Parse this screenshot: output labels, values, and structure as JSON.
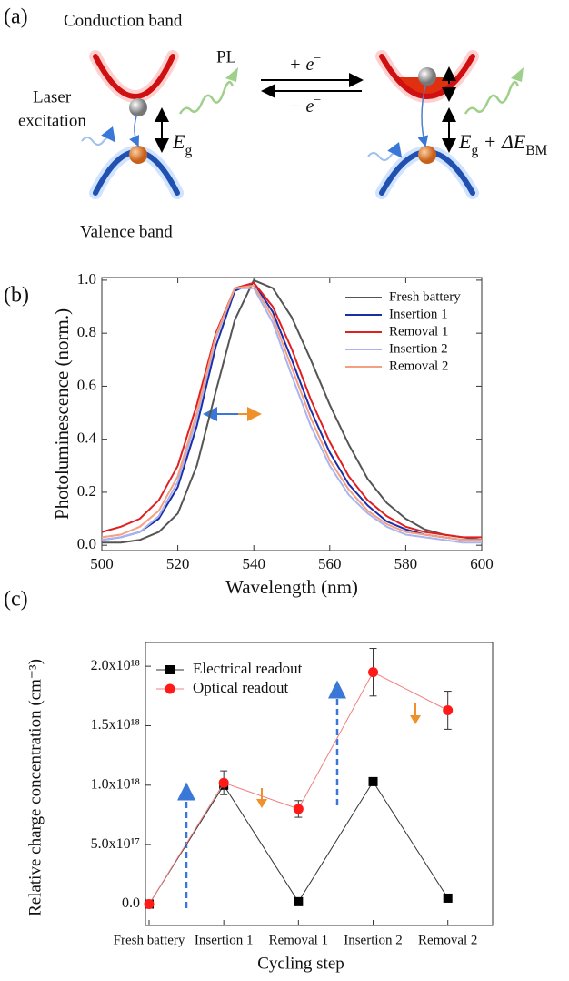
{
  "panel_labels": [
    "(a)",
    "(b)",
    "(c)"
  ],
  "diagram": {
    "conduction_band": "Conduction band",
    "valence_band": "Valence band",
    "pl": "PL",
    "laser_excitation": [
      "Laser",
      "excitation"
    ],
    "gap_label": [
      "E",
      "g"
    ],
    "shifted_gap_label": [
      "E",
      "g",
      " + ΔE",
      "BM"
    ],
    "electron_in": [
      "+ e",
      "−"
    ],
    "electron_out": [
      "− e",
      "−"
    ]
  },
  "chart_data": [
    {
      "type": "line",
      "xlabel": "Wavelength (nm)",
      "ylabel": "Photoluminescence (norm.)",
      "x": [
        500,
        505,
        510,
        515,
        520,
        525,
        530,
        535,
        540,
        545,
        550,
        555,
        560,
        565,
        570,
        575,
        580,
        585,
        590,
        595,
        600
      ],
      "series": [
        {
          "name": "Fresh battery",
          "color": "#555555",
          "values": [
            0.01,
            0.01,
            0.02,
            0.05,
            0.12,
            0.3,
            0.58,
            0.85,
            1.0,
            0.97,
            0.86,
            0.7,
            0.53,
            0.38,
            0.25,
            0.16,
            0.1,
            0.06,
            0.04,
            0.03,
            0.02
          ]
        },
        {
          "name": "Insertion 1",
          "color": "#1a2ea8",
          "values": [
            0.02,
            0.03,
            0.05,
            0.1,
            0.22,
            0.45,
            0.75,
            0.96,
            0.99,
            0.88,
            0.7,
            0.51,
            0.35,
            0.23,
            0.15,
            0.09,
            0.06,
            0.04,
            0.03,
            0.02,
            0.02
          ]
        },
        {
          "name": "Removal 1",
          "color": "#e02020",
          "values": [
            0.05,
            0.07,
            0.1,
            0.17,
            0.3,
            0.53,
            0.8,
            0.97,
            0.99,
            0.9,
            0.74,
            0.55,
            0.39,
            0.26,
            0.17,
            0.11,
            0.07,
            0.05,
            0.04,
            0.03,
            0.03
          ]
        },
        {
          "name": "Insertion 2",
          "color": "#a8b4f0",
          "values": [
            0.02,
            0.03,
            0.05,
            0.11,
            0.24,
            0.48,
            0.78,
            0.97,
            0.97,
            0.84,
            0.64,
            0.45,
            0.3,
            0.19,
            0.12,
            0.07,
            0.04,
            0.03,
            0.02,
            0.01,
            0.01
          ]
        },
        {
          "name": "Removal 2",
          "color": "#f4a080",
          "values": [
            0.03,
            0.04,
            0.07,
            0.13,
            0.26,
            0.5,
            0.79,
            0.97,
            0.98,
            0.86,
            0.67,
            0.48,
            0.32,
            0.21,
            0.13,
            0.08,
            0.05,
            0.04,
            0.03,
            0.02,
            0.02
          ]
        }
      ],
      "xlim": [
        500,
        600
      ],
      "ylim": [
        -0.02,
        1.01
      ],
      "xticks": [
        500,
        520,
        540,
        560,
        580,
        600
      ],
      "yticks": [
        {
          "value": 0,
          "label": "0.0"
        },
        0.2,
        0.4,
        0.6,
        0.8,
        {
          "value": 1,
          "label": "1.0"
        }
      ],
      "legend": "upper right"
    },
    {
      "type": "errorbar-line",
      "xlabel": "Cycling step",
      "ylabel": "Relative charge concentration (cm⁻³)",
      "categories": [
        "Fresh battery",
        "Insertion 1",
        "Removal 1",
        "Insertion 2",
        "Removal 2"
      ],
      "category_colors": [
        "#000000",
        "#4a7fd0",
        "#e02020",
        "#4a7fd0",
        "#e02020"
      ],
      "series": [
        {
          "name": "Electrical readout",
          "color": "#000000",
          "line_color": "#333333",
          "marker": "square",
          "values": [
            0,
            1e+18,
            2e+16,
            1.03e+18,
            5e+16
          ]
        },
        {
          "name": "Optical readout",
          "color": "#ff1a1a",
          "line_color": "#f08080",
          "marker": "circle",
          "values": [
            0,
            1.02e+18,
            8e+17,
            1.95e+18,
            1.63e+18
          ],
          "errors": [
            null,
            1e+17,
            7e+16,
            2e+17,
            1.6e+17
          ]
        }
      ],
      "ylim": [
        -1.8e+17,
        2.2e+18
      ],
      "yticks": [
        {
          "value": 0,
          "label": "0.0"
        },
        {
          "value": 5e+17,
          "label": "5.0x10¹⁷"
        },
        {
          "value": 1e+18,
          "label": "1.0x10¹⁸"
        },
        {
          "value": 1.5e+18,
          "label": "1.5x10¹⁸"
        },
        {
          "value": 2e+18,
          "label": "2.0x10¹⁸"
        }
      ],
      "legend": "upper left"
    }
  ]
}
